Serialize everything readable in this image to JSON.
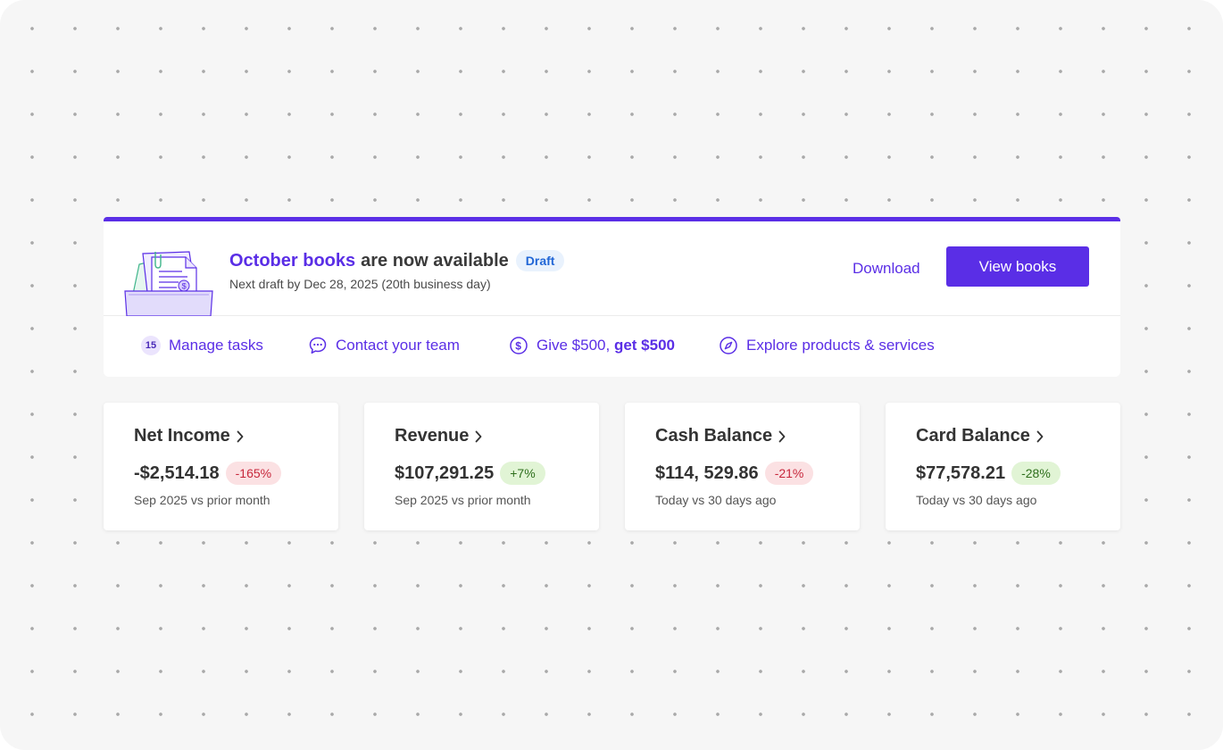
{
  "colors": {
    "accent": "#5a2ee6",
    "draft_badge_bg": "#e9f2fd",
    "draft_badge_text": "#2166d6",
    "negative_bg": "#fbe1e3",
    "negative_text": "#c7283c",
    "positive_bg": "#e1f4d5",
    "positive_text": "#2f6f1d"
  },
  "banner": {
    "headline_accent": "October books",
    "headline_rest": "are now available",
    "badge": "Draft",
    "subline": "Next draft by Dec 28, 2025 (20th business day)",
    "illustration_icon": "books-folder-illustration",
    "download_label": "Download",
    "view_books_label": "View books"
  },
  "quick_links": {
    "manage_tasks": {
      "count": "15",
      "label": "Manage tasks"
    },
    "contact_team": {
      "icon": "chat-bubble-icon",
      "label": "Contact your team"
    },
    "referral": {
      "icon": "dollar-circle-icon",
      "label_prefix": "Give $500, ",
      "label_strong": "get $500"
    },
    "explore": {
      "icon": "compass-icon",
      "label": "Explore products & services"
    }
  },
  "kpis": [
    {
      "title": "Net Income",
      "value": "-$2,514.18",
      "change": "-165%",
      "trend": "negative",
      "period": "Sep 2025 vs prior month"
    },
    {
      "title": "Revenue",
      "value": "$107,291.25",
      "change": "+7%",
      "trend": "positive",
      "period": "Sep 2025 vs prior month"
    },
    {
      "title": "Cash Balance",
      "value": "$114, 529.86",
      "change": "-21%",
      "trend": "negative",
      "period": "Today vs 30 days ago"
    },
    {
      "title": "Card Balance",
      "value": "$77,578.21",
      "change": "-28%",
      "trend": "positive",
      "period": "Today vs 30 days ago"
    }
  ]
}
